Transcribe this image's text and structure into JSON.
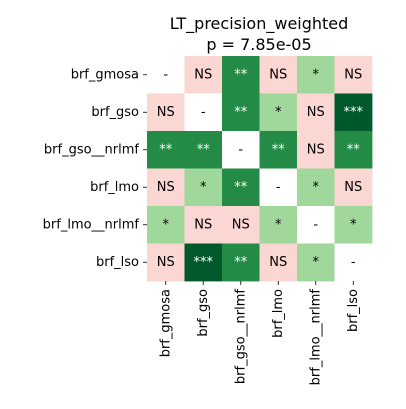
{
  "chart_data": {
    "type": "heatmap",
    "title": "LT_precision_weighted",
    "subtitle": "p = 7.85e-05",
    "xlabel": "",
    "ylabel": "",
    "rows": [
      "brf_gmosa",
      "brf_gso",
      "brf_gso__nrlmf",
      "brf_lmo",
      "brf_lmo__nrlmf",
      "brf_lso"
    ],
    "columns": [
      "brf_gmosa",
      "brf_gso",
      "brf_gso__nrlmf",
      "brf_lmo",
      "brf_lmo__nrlmf",
      "brf_lso"
    ],
    "cells": [
      [
        "-",
        "NS",
        "**",
        "NS",
        "*",
        "NS"
      ],
      [
        "NS",
        "-",
        "**",
        "*",
        "NS",
        "***"
      ],
      [
        "**",
        "**",
        "-",
        "**",
        "NS",
        "**"
      ],
      [
        "NS",
        "*",
        "**",
        "-",
        "*",
        "NS"
      ],
      [
        "*",
        "NS",
        "NS",
        "*",
        "-",
        "*"
      ],
      [
        "NS",
        "***",
        "**",
        "NS",
        "*",
        "-"
      ]
    ],
    "colors": {
      "-": "#ffffff",
      "NS": "#fbd7d4",
      "*": "#a0d79a",
      "**": "#238b45",
      "***": "#00592a"
    },
    "text_colors": {
      "-": "#000000",
      "NS": "#000000",
      "*": "#000000",
      "**": "#ffffff",
      "***": "#ffffff"
    },
    "legend": "none",
    "grid": false
  }
}
